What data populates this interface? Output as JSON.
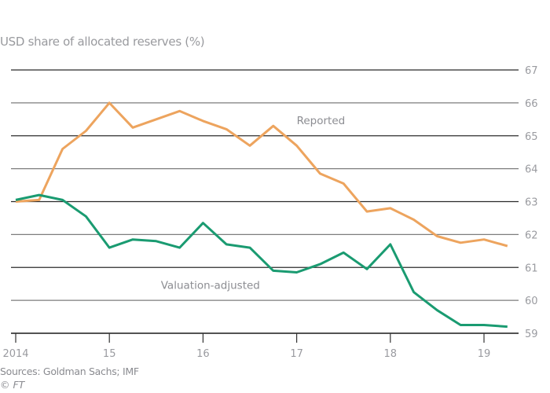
{
  "chart_data": {
    "type": "line",
    "title": "USD share of allocated reserves (%)",
    "xlabel": "",
    "ylabel": "USD share of allocated reserves (%)",
    "ylim": [
      59,
      67
    ],
    "yticks": [
      59,
      60,
      61,
      62,
      63,
      64,
      65,
      66,
      67
    ],
    "yticks_labels": [
      "59",
      "60",
      "61",
      "62",
      "63",
      "64",
      "65",
      "66",
      "67"
    ],
    "xlim": [
      2014.0,
      2019.375
    ],
    "xticks": [
      2014,
      2015,
      2016,
      2017,
      2018,
      2019
    ],
    "xticks_labels": [
      "2014",
      "15",
      "16",
      "17",
      "18",
      "19"
    ],
    "grid": true,
    "y_axis_position": "right",
    "x": [
      2014.0,
      2014.25,
      2014.5,
      2014.75,
      2015.0,
      2015.25,
      2015.5,
      2015.75,
      2016.0,
      2016.25,
      2016.5,
      2016.75,
      2017.0,
      2017.25,
      2017.5,
      2017.75,
      2018.0,
      2018.25,
      2018.5,
      2018.75,
      2019.0,
      2019.25
    ],
    "series": [
      {
        "name": "Reported",
        "color": "#eda45e",
        "values": [
          63.0,
          63.05,
          64.6,
          65.15,
          66.0,
          65.25,
          65.5,
          65.75,
          65.45,
          65.2,
          64.7,
          65.3,
          64.7,
          63.85,
          63.55,
          62.7,
          62.8,
          62.45,
          61.95,
          61.75,
          61.85,
          61.65
        ],
        "label_at": [
          2017.0,
          65.35
        ]
      },
      {
        "name": "Valuation-adjusted",
        "color": "#1a9b71",
        "values": [
          63.05,
          63.2,
          63.05,
          62.55,
          61.6,
          61.85,
          61.8,
          61.6,
          62.35,
          61.7,
          61.6,
          60.9,
          60.85,
          61.1,
          61.45,
          60.95,
          61.7,
          60.25,
          59.7,
          59.25,
          59.25,
          59.2
        ],
        "label_at": [
          2015.55,
          60.35
        ]
      }
    ]
  },
  "footer": {
    "source": "Sources: Goldman Sachs; IMF",
    "copyright": "© FT"
  }
}
